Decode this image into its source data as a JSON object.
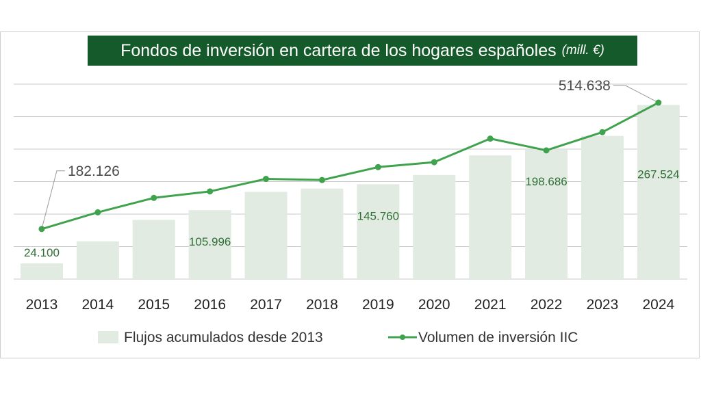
{
  "chart_data": {
    "type": "bar+line",
    "title": "Fondos de inversión en cartera de los hogares españoles",
    "title_unit": "(mill. €)",
    "categories": [
      "2013",
      "2014",
      "2015",
      "2016",
      "2017",
      "2018",
      "2019",
      "2020",
      "2021",
      "2022",
      "2023",
      "2024"
    ],
    "series": [
      {
        "name": "Flujos acumulados desde 2013",
        "type": "bar",
        "color": "#e2ebe1",
        "values": [
          24.1,
          58,
          91,
          105.996,
          134,
          139,
          145.76,
          160,
          190,
          198.686,
          220,
          267.524
        ]
      },
      {
        "name": "Volumen de inversión IIC",
        "type": "line",
        "color": "#3fa24c",
        "values": [
          182.126,
          226,
          264,
          281,
          314,
          311,
          345,
          358,
          420,
          389,
          437,
          514.638
        ]
      }
    ],
    "data_labels": [
      {
        "series": 0,
        "category": "2013",
        "text": "24.100"
      },
      {
        "series": 0,
        "category": "2016",
        "text": "105.996"
      },
      {
        "series": 0,
        "category": "2019",
        "text": "145.760"
      },
      {
        "series": 0,
        "category": "2022",
        "text": "198.686"
      },
      {
        "series": 0,
        "category": "2024",
        "text": "267.524"
      },
      {
        "series": 1,
        "category": "2013",
        "text": "182.126"
      },
      {
        "series": 1,
        "category": "2024",
        "text": "514.638"
      }
    ],
    "grid": true,
    "legend": "bottom",
    "colors": {
      "title_bg": "#155a2a",
      "title_text": "#ffffff",
      "grid": "#c8c8c8",
      "label_green": "#2f6f35",
      "label_gray": "#4a4a4a"
    }
  }
}
